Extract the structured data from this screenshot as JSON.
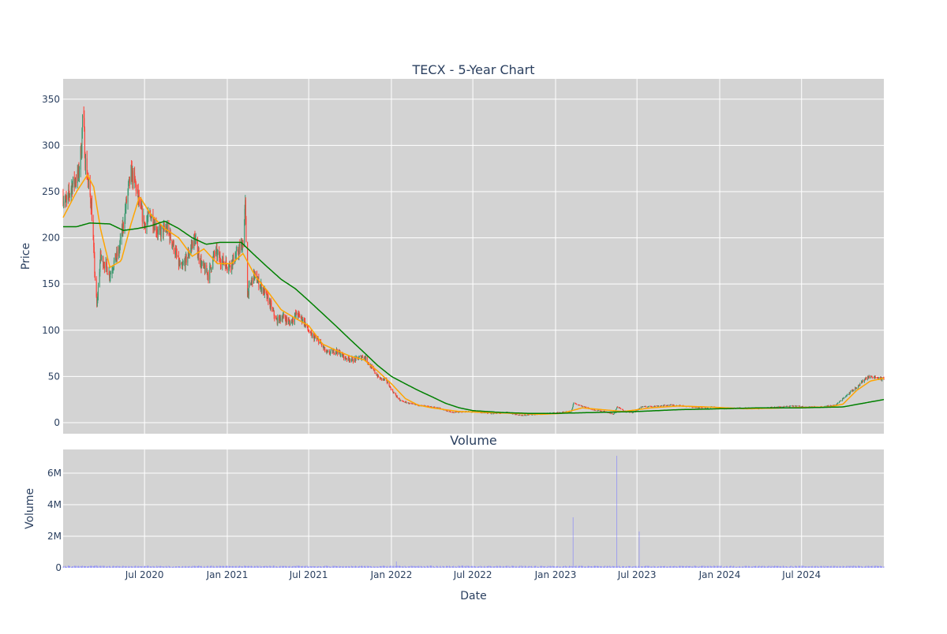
{
  "chart_data": [
    {
      "type": "candlestick",
      "title": "TECX - 5-Year Chart",
      "ylabel": "Price",
      "ylim": [
        -12,
        372
      ],
      "yticks": [
        0,
        50,
        100,
        150,
        200,
        250,
        300,
        350
      ],
      "x_range": [
        "2020-01-02",
        "2024-12-31"
      ],
      "grid": true,
      "colors": {
        "increasing": "#3d9970",
        "decreasing": "#ff4136",
        "ma_short": "#ffa500",
        "ma_long": "#008000",
        "plot_bg": "#d3d3d3"
      },
      "price_anchors": [
        [
          "2020-01-02",
          245
        ],
        [
          "2020-01-10",
          238
        ],
        [
          "2020-01-20",
          255
        ],
        [
          "2020-01-28",
          262
        ],
        [
          "2020-02-05",
          268
        ],
        [
          "2020-02-12",
          300
        ],
        [
          "2020-02-15",
          345
        ],
        [
          "2020-02-20",
          285
        ],
        [
          "2020-02-28",
          255
        ],
        [
          "2020-03-05",
          235
        ],
        [
          "2020-03-12",
          165
        ],
        [
          "2020-03-17",
          125
        ],
        [
          "2020-03-25",
          180
        ],
        [
          "2020-04-05",
          170
        ],
        [
          "2020-04-15",
          160
        ],
        [
          "2020-04-25",
          175
        ],
        [
          "2020-05-05",
          185
        ],
        [
          "2020-05-15",
          215
        ],
        [
          "2020-05-25",
          250
        ],
        [
          "2020-06-01",
          270
        ],
        [
          "2020-06-10",
          260
        ],
        [
          "2020-06-20",
          235
        ],
        [
          "2020-07-01",
          215
        ],
        [
          "2020-07-15",
          225
        ],
        [
          "2020-08-01",
          205
        ],
        [
          "2020-08-20",
          210
        ],
        [
          "2020-09-01",
          195
        ],
        [
          "2020-09-20",
          165
        ],
        [
          "2020-10-05",
          180
        ],
        [
          "2020-10-20",
          200
        ],
        [
          "2020-11-05",
          170
        ],
        [
          "2020-11-20",
          160
        ],
        [
          "2020-12-05",
          185
        ],
        [
          "2020-12-20",
          175
        ],
        [
          "2021-01-05",
          170
        ],
        [
          "2021-01-20",
          180
        ],
        [
          "2021-02-05",
          195
        ],
        [
          "2021-02-10",
          235
        ],
        [
          "2021-02-15",
          140
        ],
        [
          "2021-03-01",
          160
        ],
        [
          "2021-03-20",
          145
        ],
        [
          "2021-04-05",
          130
        ],
        [
          "2021-04-20",
          110
        ],
        [
          "2021-05-05",
          115
        ],
        [
          "2021-05-20",
          108
        ],
        [
          "2021-06-05",
          118
        ],
        [
          "2021-06-20",
          110
        ],
        [
          "2021-07-05",
          95
        ],
        [
          "2021-07-25",
          88
        ],
        [
          "2021-08-10",
          75
        ],
        [
          "2021-09-01",
          78
        ],
        [
          "2021-09-20",
          70
        ],
        [
          "2021-10-10",
          68
        ],
        [
          "2021-11-01",
          72
        ],
        [
          "2021-11-20",
          58
        ],
        [
          "2021-12-05",
          48
        ],
        [
          "2021-12-20",
          46
        ],
        [
          "2022-01-05",
          33
        ],
        [
          "2022-01-20",
          24
        ],
        [
          "2022-02-15",
          20
        ],
        [
          "2022-03-15",
          18
        ],
        [
          "2022-04-15",
          16
        ],
        [
          "2022-05-15",
          11
        ],
        [
          "2022-06-15",
          12
        ],
        [
          "2022-07-15",
          11
        ],
        [
          "2022-08-15",
          10
        ],
        [
          "2022-09-15",
          11
        ],
        [
          "2022-10-15",
          8
        ],
        [
          "2022-11-15",
          9
        ],
        [
          "2022-12-15",
          10
        ],
        [
          "2023-01-15",
          11
        ],
        [
          "2023-02-05",
          12
        ],
        [
          "2023-02-10",
          21
        ],
        [
          "2023-03-01",
          18
        ],
        [
          "2023-03-25",
          14
        ],
        [
          "2023-04-20",
          12
        ],
        [
          "2023-05-10",
          9
        ],
        [
          "2023-05-18",
          17
        ],
        [
          "2023-06-05",
          12
        ],
        [
          "2023-06-25",
          11
        ],
        [
          "2023-07-10",
          17
        ],
        [
          "2023-08-15",
          18
        ],
        [
          "2023-09-15",
          19
        ],
        [
          "2023-10-15",
          18
        ],
        [
          "2023-11-15",
          16
        ],
        [
          "2023-12-15",
          17
        ],
        [
          "2024-01-15",
          15
        ],
        [
          "2024-02-15",
          16
        ],
        [
          "2024-03-15",
          15
        ],
        [
          "2024-04-15",
          16
        ],
        [
          "2024-05-15",
          17
        ],
        [
          "2024-06-15",
          18
        ],
        [
          "2024-07-15",
          17
        ],
        [
          "2024-08-15",
          17
        ],
        [
          "2024-09-15",
          19
        ],
        [
          "2024-10-05",
          28
        ],
        [
          "2024-10-20",
          34
        ],
        [
          "2024-11-05",
          40
        ],
        [
          "2024-11-20",
          48
        ],
        [
          "2024-12-05",
          50
        ],
        [
          "2024-12-31",
          47
        ]
      ],
      "ma_short_anchors": [
        [
          "2020-01-02",
          222
        ],
        [
          "2020-02-01",
          250
        ],
        [
          "2020-02-25",
          268
        ],
        [
          "2020-03-10",
          255
        ],
        [
          "2020-03-25",
          210
        ],
        [
          "2020-04-15",
          168
        ],
        [
          "2020-05-10",
          175
        ],
        [
          "2020-06-01",
          215
        ],
        [
          "2020-06-20",
          245
        ],
        [
          "2020-07-15",
          225
        ],
        [
          "2020-08-15",
          210
        ],
        [
          "2020-09-15",
          200
        ],
        [
          "2020-10-15",
          180
        ],
        [
          "2020-11-10",
          188
        ],
        [
          "2020-12-10",
          172
        ],
        [
          "2021-01-10",
          172
        ],
        [
          "2021-02-05",
          183
        ],
        [
          "2021-03-05",
          158
        ],
        [
          "2021-04-01",
          142
        ],
        [
          "2021-05-01",
          122
        ],
        [
          "2021-06-01",
          113
        ],
        [
          "2021-07-01",
          105
        ],
        [
          "2021-08-01",
          85
        ],
        [
          "2021-09-01",
          78
        ],
        [
          "2021-10-01",
          72
        ],
        [
          "2021-11-01",
          68
        ],
        [
          "2021-12-01",
          56
        ],
        [
          "2022-01-01",
          42
        ],
        [
          "2022-02-01",
          26
        ],
        [
          "2022-03-01",
          19
        ],
        [
          "2022-04-01",
          16
        ],
        [
          "2022-05-01",
          14
        ],
        [
          "2022-06-01",
          12
        ],
        [
          "2022-08-01",
          11
        ],
        [
          "2022-10-01",
          10
        ],
        [
          "2022-12-01",
          9
        ],
        [
          "2023-01-15",
          10
        ],
        [
          "2023-03-01",
          16
        ],
        [
          "2023-04-15",
          14
        ],
        [
          "2023-06-01",
          12
        ],
        [
          "2023-08-01",
          16
        ],
        [
          "2023-10-01",
          18
        ],
        [
          "2023-12-01",
          17
        ],
        [
          "2024-03-01",
          15
        ],
        [
          "2024-06-01",
          16
        ],
        [
          "2024-09-01",
          17
        ],
        [
          "2024-10-01",
          20
        ],
        [
          "2024-11-01",
          35
        ],
        [
          "2024-12-01",
          45
        ],
        [
          "2024-12-31",
          48
        ]
      ],
      "ma_long_anchors": [
        [
          "2020-01-02",
          212
        ],
        [
          "2020-02-01",
          212
        ],
        [
          "2020-03-01",
          216
        ],
        [
          "2020-04-15",
          215
        ],
        [
          "2020-05-15",
          208
        ],
        [
          "2020-06-15",
          210
        ],
        [
          "2020-07-15",
          213
        ],
        [
          "2020-08-15",
          218
        ],
        [
          "2020-09-15",
          210
        ],
        [
          "2020-10-15",
          200
        ],
        [
          "2020-11-15",
          193
        ],
        [
          "2020-12-15",
          195
        ],
        [
          "2021-02-01",
          195
        ],
        [
          "2021-03-01",
          182
        ],
        [
          "2021-04-01",
          168
        ],
        [
          "2021-05-01",
          155
        ],
        [
          "2021-06-01",
          145
        ],
        [
          "2021-07-01",
          132
        ],
        [
          "2021-08-01",
          118
        ],
        [
          "2021-09-01",
          104
        ],
        [
          "2021-10-01",
          90
        ],
        [
          "2021-11-01",
          76
        ],
        [
          "2021-12-01",
          62
        ],
        [
          "2022-01-01",
          50
        ],
        [
          "2022-02-01",
          42
        ],
        [
          "2022-03-01",
          35
        ],
        [
          "2022-04-01",
          28
        ],
        [
          "2022-05-01",
          21
        ],
        [
          "2022-06-01",
          16
        ],
        [
          "2022-07-01",
          13
        ],
        [
          "2022-09-01",
          11
        ],
        [
          "2022-11-01",
          10
        ],
        [
          "2023-01-01",
          10
        ],
        [
          "2023-04-01",
          11
        ],
        [
          "2023-07-01",
          12
        ],
        [
          "2023-10-01",
          14
        ],
        [
          "2024-01-01",
          15
        ],
        [
          "2024-04-01",
          16
        ],
        [
          "2024-07-01",
          16
        ],
        [
          "2024-10-01",
          17
        ],
        [
          "2024-12-31",
          25
        ]
      ]
    },
    {
      "type": "bar",
      "title": "Volume",
      "ylabel": "Volume",
      "xlabel": "Date",
      "ylim": [
        0,
        7500000
      ],
      "yticks": [
        0,
        2000000,
        4000000,
        6000000
      ],
      "ytick_labels": [
        "0",
        "2M",
        "4M",
        "6M"
      ],
      "xticks": [
        "2020-07-01",
        "2021-01-01",
        "2021-07-01",
        "2022-01-01",
        "2022-07-01",
        "2023-01-01",
        "2023-07-01",
        "2024-01-01",
        "2024-07-01"
      ],
      "xtick_labels": [
        "Jul 2020",
        "Jan 2021",
        "Jul 2021",
        "Jan 2022",
        "Jul 2022",
        "Jan 2023",
        "Jul 2023",
        "Jan 2024",
        "Jul 2024"
      ],
      "grid": true,
      "baseline_volume": 90000,
      "spikes": [
        [
          "2020-03-16",
          150000
        ],
        [
          "2021-02-10",
          120000
        ],
        [
          "2022-01-12",
          400000
        ],
        [
          "2023-02-09",
          3200000
        ],
        [
          "2023-05-17",
          7100000
        ],
        [
          "2023-07-06",
          2300000
        ],
        [
          "2024-10-05",
          450000
        ],
        [
          "2024-10-12",
          350000
        ]
      ],
      "color": "#8080ff"
    }
  ]
}
